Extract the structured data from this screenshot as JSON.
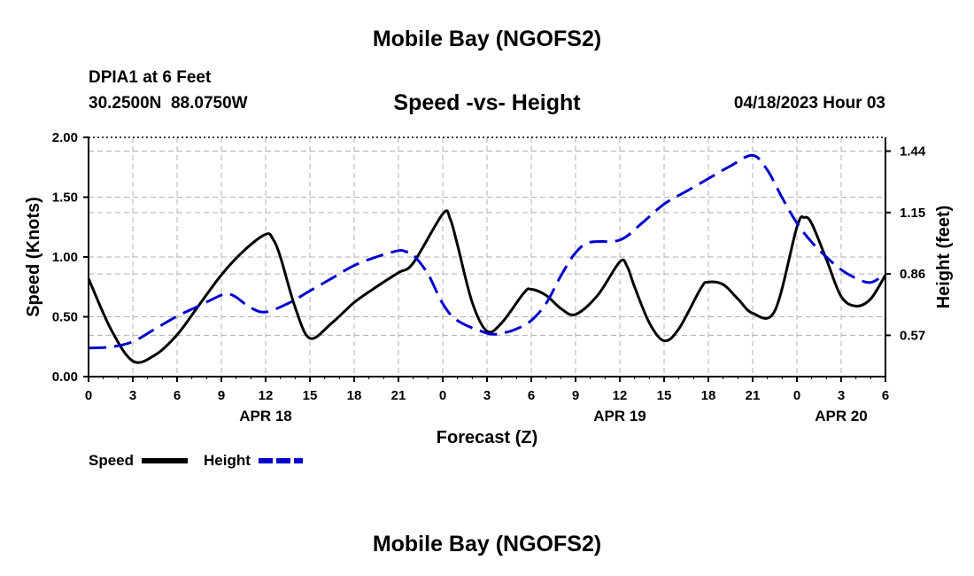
{
  "header": {
    "title": "Mobile Bay (NGOFS2)",
    "station": "DPIA1 at 6 Feet",
    "lat": "30.2500N",
    "lon": "88.0750W",
    "subtitle": "Speed -vs- Height",
    "datetime": "04/18/2023 Hour 03"
  },
  "footer": {
    "title": "Mobile Bay (NGOFS2)"
  },
  "colors": {
    "speed": "#000000",
    "height": "#0000cc",
    "grid": "#b0b0b0"
  },
  "chart_data": {
    "type": "line",
    "xlabel": "Forecast (Z)",
    "ylabel_left": "Speed (Knots)",
    "ylabel_right": "Height (feet)",
    "x_range_hours": [
      0,
      54
    ],
    "x_tick_hours": [
      0,
      3,
      6,
      9,
      12,
      15,
      18,
      21,
      24,
      27,
      30,
      33,
      36,
      39,
      42,
      45,
      48,
      51,
      54
    ],
    "x_tick_labels": [
      "0",
      "3",
      "6",
      "9",
      "12",
      "15",
      "18",
      "21",
      "0",
      "3",
      "6",
      "9",
      "12",
      "15",
      "18",
      "21",
      "0",
      "3",
      "6"
    ],
    "date_labels": [
      {
        "hour": 12,
        "text": "APR 18"
      },
      {
        "hour": 36,
        "text": "APR 19"
      },
      {
        "hour": 51,
        "text": "APR 20"
      }
    ],
    "y_left": {
      "range": [
        0,
        2.0
      ],
      "ticks": [
        0,
        0.5,
        1.0,
        1.5,
        2.0
      ],
      "tick_labels": [
        "0.00",
        "0.50",
        "1.00",
        "1.50",
        "2.00"
      ]
    },
    "y_right": {
      "range": [
        0.375,
        1.505
      ],
      "ticks": [
        0.57,
        0.86,
        1.15,
        1.44
      ],
      "tick_labels": [
        "0.57",
        "0.86",
        "1.15",
        "1.44"
      ]
    },
    "legend": [
      {
        "name": "Speed",
        "style": "solid"
      },
      {
        "name": "Height",
        "style": "dashed"
      }
    ],
    "series": [
      {
        "name": "Speed",
        "axis": "left",
        "style": "solid",
        "hours": [
          0,
          1.5,
          3,
          4.5,
          6,
          7.5,
          9,
          10.5,
          12,
          12.5,
          13,
          14,
          15,
          16.5,
          18,
          19.5,
          21,
          22,
          24,
          24.5,
          25,
          26,
          27,
          28,
          29.5,
          30,
          31,
          32,
          33,
          34.5,
          36,
          36.5,
          37,
          38,
          39,
          40,
          41.5,
          42,
          43,
          44,
          45,
          46.5,
          48,
          48.5,
          49,
          50,
          51,
          52,
          53,
          54
        ],
        "values": [
          0.82,
          0.4,
          0.13,
          0.18,
          0.35,
          0.6,
          0.85,
          1.05,
          1.19,
          1.15,
          1.0,
          0.58,
          0.32,
          0.45,
          0.62,
          0.75,
          0.87,
          0.95,
          1.36,
          1.32,
          1.1,
          0.62,
          0.38,
          0.45,
          0.7,
          0.73,
          0.68,
          0.57,
          0.52,
          0.68,
          0.96,
          0.92,
          0.75,
          0.45,
          0.3,
          0.4,
          0.74,
          0.79,
          0.77,
          0.65,
          0.53,
          0.55,
          1.25,
          1.33,
          1.28,
          0.98,
          0.67,
          0.59,
          0.65,
          0.85
        ]
      },
      {
        "name": "Height",
        "axis": "right",
        "style": "dashed",
        "hours": [
          0,
          1.5,
          3,
          4.5,
          6,
          7.5,
          9,
          9.5,
          10,
          11,
          12,
          13.5,
          15,
          16.5,
          18,
          19.5,
          21,
          21.5,
          22,
          23,
          24,
          25,
          27,
          28,
          29,
          30,
          31,
          32,
          33,
          34,
          36,
          37.5,
          39,
          40.5,
          42,
          43.5,
          45,
          46,
          47,
          48,
          49,
          50,
          51,
          52,
          53,
          54
        ],
        "values": [
          0.51,
          0.515,
          0.54,
          0.6,
          0.66,
          0.71,
          0.76,
          0.765,
          0.75,
          0.7,
          0.68,
          0.72,
          0.78,
          0.84,
          0.9,
          0.94,
          0.97,
          0.965,
          0.95,
          0.86,
          0.72,
          0.64,
          0.58,
          0.58,
          0.6,
          0.64,
          0.72,
          0.85,
          0.96,
          1.01,
          1.02,
          1.1,
          1.19,
          1.25,
          1.31,
          1.37,
          1.42,
          1.35,
          1.22,
          1.1,
          1.01,
          0.94,
          0.88,
          0.84,
          0.82,
          0.86
        ]
      }
    ]
  }
}
